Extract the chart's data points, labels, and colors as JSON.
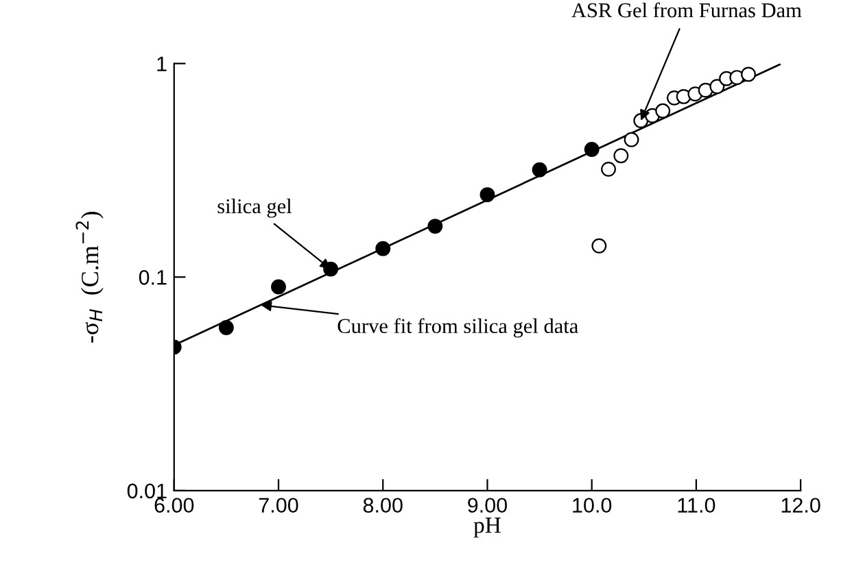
{
  "chart_data": {
    "type": "scatter",
    "xlabel": "pH",
    "ylabel": "-σ$_{H}$  (C.m$^{−2}$)",
    "log": "y",
    "xlim": [
      6.0,
      12.0
    ],
    "ylim": [
      0.01,
      1
    ],
    "xticks": [
      {
        "value": 6,
        "label": "6.00"
      },
      {
        "value": 7,
        "label": "7.00"
      },
      {
        "value": 8,
        "label": "8.00"
      },
      {
        "value": 9,
        "label": "9.00"
      },
      {
        "value": 10,
        "label": "10.0"
      },
      {
        "value": 11,
        "label": "11.0"
      },
      {
        "value": 12,
        "label": "12.0"
      }
    ],
    "yticks": [
      0.01,
      0.1,
      1
    ],
    "grid": false,
    "legend": false,
    "series": [
      {
        "marker": "circle",
        "color": "#000000",
        "x": [
          6.0,
          6.5,
          7.0,
          7.5,
          8.0,
          8.5,
          9.0,
          9.5,
          10.0
        ],
        "values": [
          0.047,
          0.058,
          0.09,
          0.109,
          0.136,
          0.173,
          0.243,
          0.318,
          0.396
        ]
      },
      {
        "marker": "circle",
        "color": "#ffffff",
        "x": [
          10.07,
          10.16,
          10.28,
          10.38,
          10.47,
          10.58,
          10.68,
          10.79,
          10.88,
          10.99,
          11.09,
          11.2,
          11.29,
          11.39,
          11.5
        ],
        "values": [
          0.14,
          0.32,
          0.37,
          0.44,
          0.54,
          0.57,
          0.6,
          0.69,
          0.7,
          0.72,
          0.75,
          0.78,
          0.85,
          0.86,
          0.89
        ]
      },
      {
        "type": "line",
        "marker": "none",
        "line_style": "solid",
        "color": "#000000",
        "x": [
          6.0,
          11.8
        ],
        "values": [
          0.048,
          0.99
        ]
      }
    ],
    "annotations": [
      {
        "text": "ASR Gel from Furnas Dam",
        "x": 10.47,
        "y": 0.54
      },
      {
        "text": "silica gel",
        "x": 7.5,
        "y": 0.109
      },
      {
        "text": "Curve fit from silica gel data",
        "x": 6.83,
        "y": 0.074
      }
    ]
  }
}
